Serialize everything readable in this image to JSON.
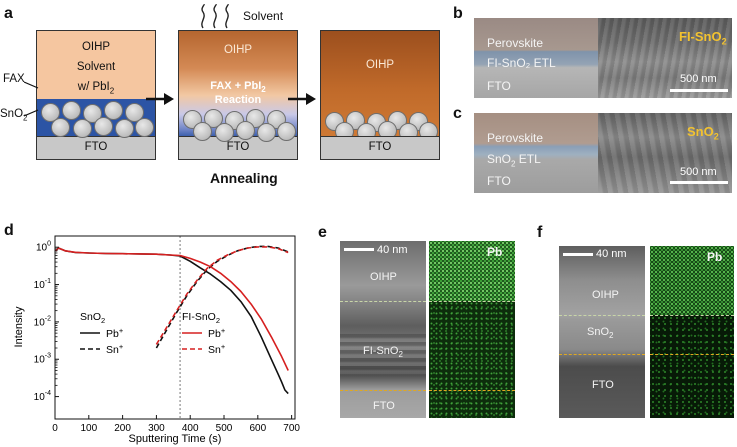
{
  "panels": {
    "a": {
      "label": "a",
      "solvent": "Solvent",
      "block1": {
        "line1": "OIHP",
        "line2": "Solvent",
        "line3_prefix": "w/ PbI",
        "line3_sub": "2",
        "fto": "FTO"
      },
      "block2": {
        "top": "OIHP",
        "reaction_prefix": "FAX + PbI",
        "reaction_sub": "2",
        "reaction_line2": "Reaction",
        "fto": "FTO"
      },
      "block3": {
        "top": "OIHP",
        "fto": "FTO"
      },
      "side_fax": "FAX",
      "side_sno2_prefix": "SnO",
      "side_sno2_sub": "2",
      "annealing": "Annealing"
    },
    "b": {
      "label": "b",
      "perovskite": "Perovskite",
      "etl": "FI-SnO₂ ETL",
      "fto": "FTO",
      "tag_prefix": "FI-SnO",
      "tag_sub": "2",
      "scale": "500 nm"
    },
    "c": {
      "label": "c",
      "perovskite": "Perovskite",
      "etl_prefix": "SnO",
      "etl_sub": "2",
      "etl_suffix": " ETL",
      "fto": "FTO",
      "tag_prefix": "SnO",
      "tag_sub": "2",
      "scale": "500 nm"
    },
    "e": {
      "label": "e",
      "scale": "40 nm",
      "oihp": "OIHP",
      "fi_prefix": "FI-SnO",
      "fi_sub": "2",
      "fto": "FTO",
      "map_label": "Pb"
    },
    "f": {
      "label": "f",
      "scale": "40 nm",
      "oihp": "OIHP",
      "sno2_prefix": "SnO",
      "sno2_sub": "2",
      "fto": "FTO",
      "map_label": "Pb"
    }
  },
  "chart_data": {
    "type": "line",
    "panel_label": "d",
    "xlabel": "Sputtering Time (s)",
    "ylabel": "Intensity",
    "xlim": [
      0,
      710
    ],
    "ylim_log10": [
      -4.6,
      0.3
    ],
    "x_ticks": [
      0,
      100,
      200,
      300,
      400,
      500,
      600,
      700
    ],
    "y_ticks": [
      {
        "base": "10",
        "exp": "0",
        "value": 1
      },
      {
        "base": "10",
        "exp": "-1",
        "value": 0.1
      },
      {
        "base": "10",
        "exp": "-2",
        "value": 0.01
      },
      {
        "base": "10",
        "exp": "-3",
        "value": 0.001
      },
      {
        "base": "10",
        "exp": "-4",
        "value": 0.0001
      }
    ],
    "divider_x": 370,
    "legend_groups": [
      {
        "title_prefix": "SnO",
        "title_sub": "2",
        "entries": [
          {
            "label_base": "Pb",
            "label_sup": "+",
            "color": "#111111",
            "dash": false
          },
          {
            "label_base": "Sn",
            "label_sup": "+",
            "color": "#111111",
            "dash": true
          }
        ]
      },
      {
        "title_prefix": "FI-SnO",
        "title_sub": "2",
        "entries": [
          {
            "label_base": "Pb",
            "label_sup": "+",
            "color": "#d62020",
            "dash": false
          },
          {
            "label_base": "Sn",
            "label_sup": "+",
            "color": "#d62020",
            "dash": true
          }
        ]
      }
    ],
    "series": [
      {
        "name": "SnO2 Pb+",
        "color": "#111111",
        "dash": false,
        "x": [
          2,
          10,
          30,
          60,
          100,
          150,
          200,
          250,
          300,
          340,
          370,
          400,
          430,
          460,
          490,
          520,
          550,
          580,
          610,
          640,
          660,
          670,
          680,
          690
        ],
        "y": [
          0.78,
          0.95,
          0.8,
          0.72,
          0.7,
          0.68,
          0.67,
          0.66,
          0.65,
          0.62,
          0.58,
          0.42,
          0.28,
          0.19,
          0.12,
          0.07,
          0.035,
          0.014,
          0.004,
          0.001,
          0.0004,
          0.00025,
          0.00015,
          0.00012
        ]
      },
      {
        "name": "SnO2 Sn+",
        "color": "#111111",
        "dash": true,
        "x": [
          300,
          330,
          360,
          390,
          420,
          450,
          480,
          510,
          540,
          570,
          600,
          630,
          660,
          690
        ],
        "y": [
          0.002,
          0.006,
          0.018,
          0.05,
          0.12,
          0.25,
          0.42,
          0.6,
          0.8,
          0.95,
          1.05,
          1.05,
          0.95,
          0.75
        ]
      },
      {
        "name": "FI-SnO2 Pb+",
        "color": "#d62020",
        "dash": false,
        "x": [
          2,
          10,
          30,
          60,
          100,
          150,
          200,
          250,
          300,
          340,
          370,
          400,
          430,
          460,
          490,
          520,
          550,
          580,
          610,
          640,
          670,
          690
        ],
        "y": [
          0.8,
          0.95,
          0.8,
          0.73,
          0.7,
          0.68,
          0.67,
          0.66,
          0.65,
          0.62,
          0.6,
          0.5,
          0.4,
          0.3,
          0.2,
          0.12,
          0.065,
          0.03,
          0.012,
          0.004,
          0.0012,
          0.0005
        ]
      },
      {
        "name": "FI-SnO2 Sn+",
        "color": "#d62020",
        "dash": true,
        "x": [
          300,
          330,
          360,
          390,
          420,
          450,
          480,
          510,
          540,
          570,
          600,
          630,
          660,
          690
        ],
        "y": [
          0.0025,
          0.007,
          0.02,
          0.055,
          0.13,
          0.27,
          0.45,
          0.62,
          0.8,
          0.95,
          1.02,
          1.02,
          0.92,
          0.72
        ]
      }
    ]
  }
}
